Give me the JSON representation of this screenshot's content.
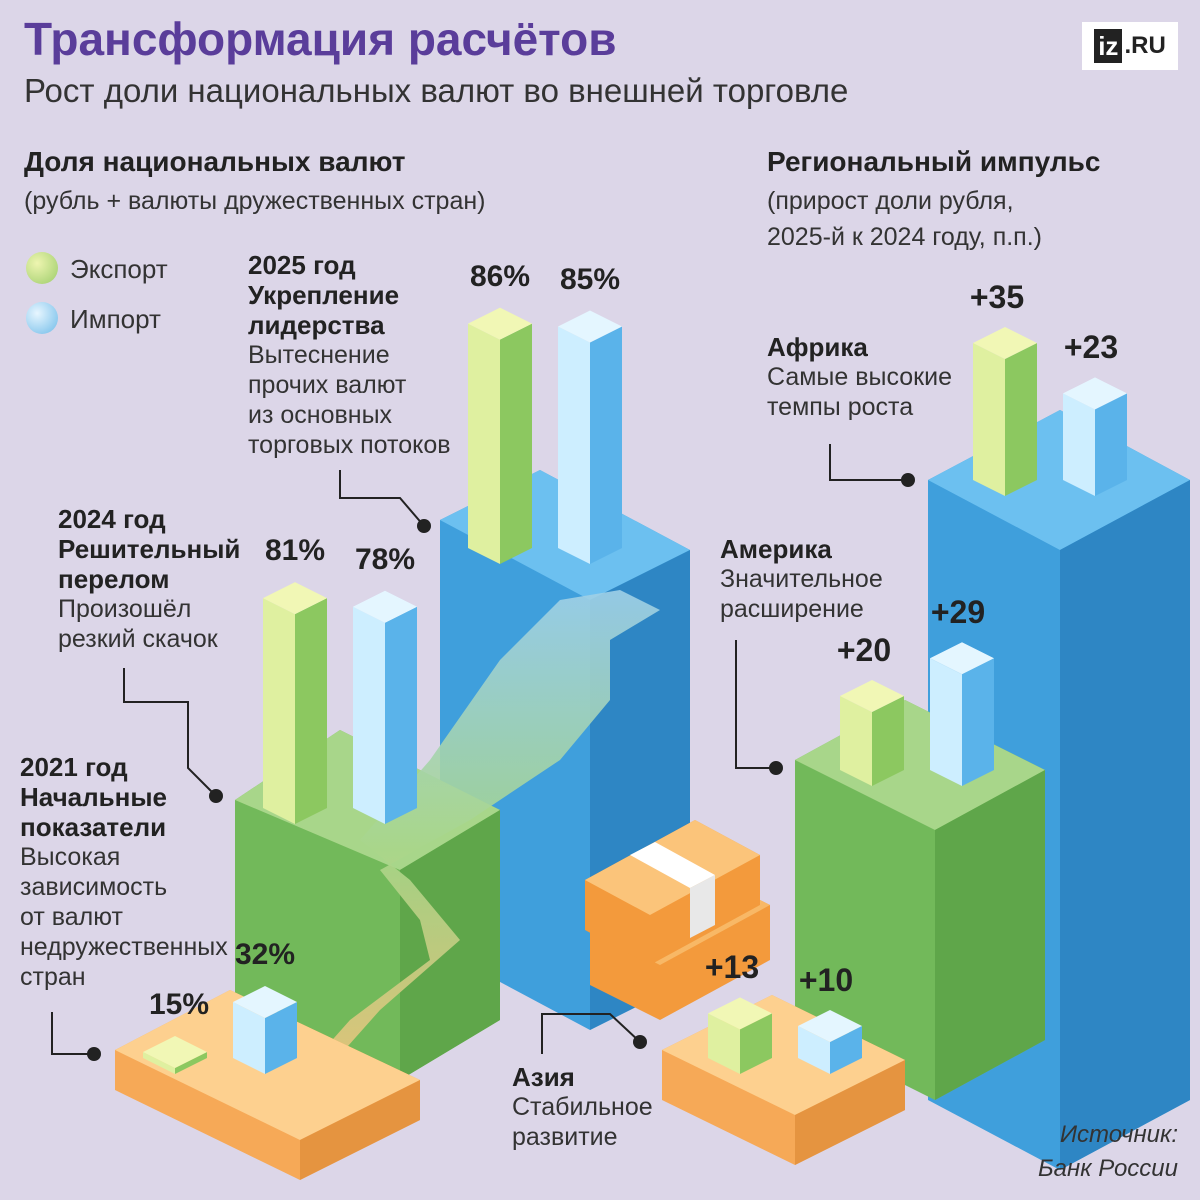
{
  "title": "Трансформация расчётов",
  "subtitle": "Рост доли национальных валют во внешней торговле",
  "logo": {
    "iz": "iz",
    "ru": ".RU"
  },
  "left_heading": "Доля национальных валют",
  "left_note": "(рубль + валюты дружественных стран)",
  "right_heading": "Региональный импульс",
  "right_note_1": "(прирост доли рубля,",
  "right_note_2": "2025-й к 2024 году, п.п.)",
  "legend": [
    {
      "label": "Экспорт",
      "color": "#9ccc6a"
    },
    {
      "label": "Импорт",
      "color": "#6fbbe8"
    }
  ],
  "annotations": {
    "y2025": {
      "year": "2025 год",
      "title1": "Укрепление",
      "title2": "лидерства",
      "lines": [
        "Вытеснение",
        "прочих валют",
        "из основных",
        "торговых потоков"
      ]
    },
    "y2024": {
      "year": "2024 год",
      "title1": "Решительный",
      "title2": "перелом",
      "lines": [
        "Произошёл",
        "резкий скачок"
      ]
    },
    "y2021": {
      "year": "2021 год",
      "title1": "Начальные",
      "title2": "показатели",
      "lines": [
        "Высокая",
        "зависимость",
        "от валют",
        "недружественных",
        "стран"
      ]
    },
    "africa": {
      "title": "Африка",
      "lines": [
        "Самые высокие",
        "темпы роста"
      ]
    },
    "america": {
      "title": "Америка",
      "lines": [
        "Значительное",
        "расширение"
      ]
    },
    "asia": {
      "title": "Азия",
      "lines": [
        "Стабильное",
        "развитие"
      ]
    }
  },
  "source_1": "Источник:",
  "source_2": "Банк России",
  "chart_data": [
    {
      "type": "bar",
      "title": "Доля национальных валют",
      "categories": [
        "2021",
        "2024",
        "2025"
      ],
      "unit": "%",
      "series": [
        {
          "name": "Экспорт",
          "values": [
            15,
            81,
            86
          ],
          "labels": [
            "15%",
            "81%",
            "86%"
          ]
        },
        {
          "name": "Импорт",
          "values": [
            32,
            78,
            85
          ],
          "labels": [
            "32%",
            "78%",
            "85%"
          ]
        }
      ]
    },
    {
      "type": "bar",
      "title": "Региональный импульс",
      "categories": [
        "Азия",
        "Америка",
        "Африка"
      ],
      "unit": "п.п.",
      "series": [
        {
          "name": "Экспорт",
          "values": [
            13,
            20,
            35
          ],
          "labels": [
            "+13",
            "+20",
            "+35"
          ]
        },
        {
          "name": "Импорт",
          "values": [
            10,
            29,
            23
          ],
          "labels": [
            "+10",
            "+29",
            "+23"
          ]
        }
      ]
    }
  ]
}
